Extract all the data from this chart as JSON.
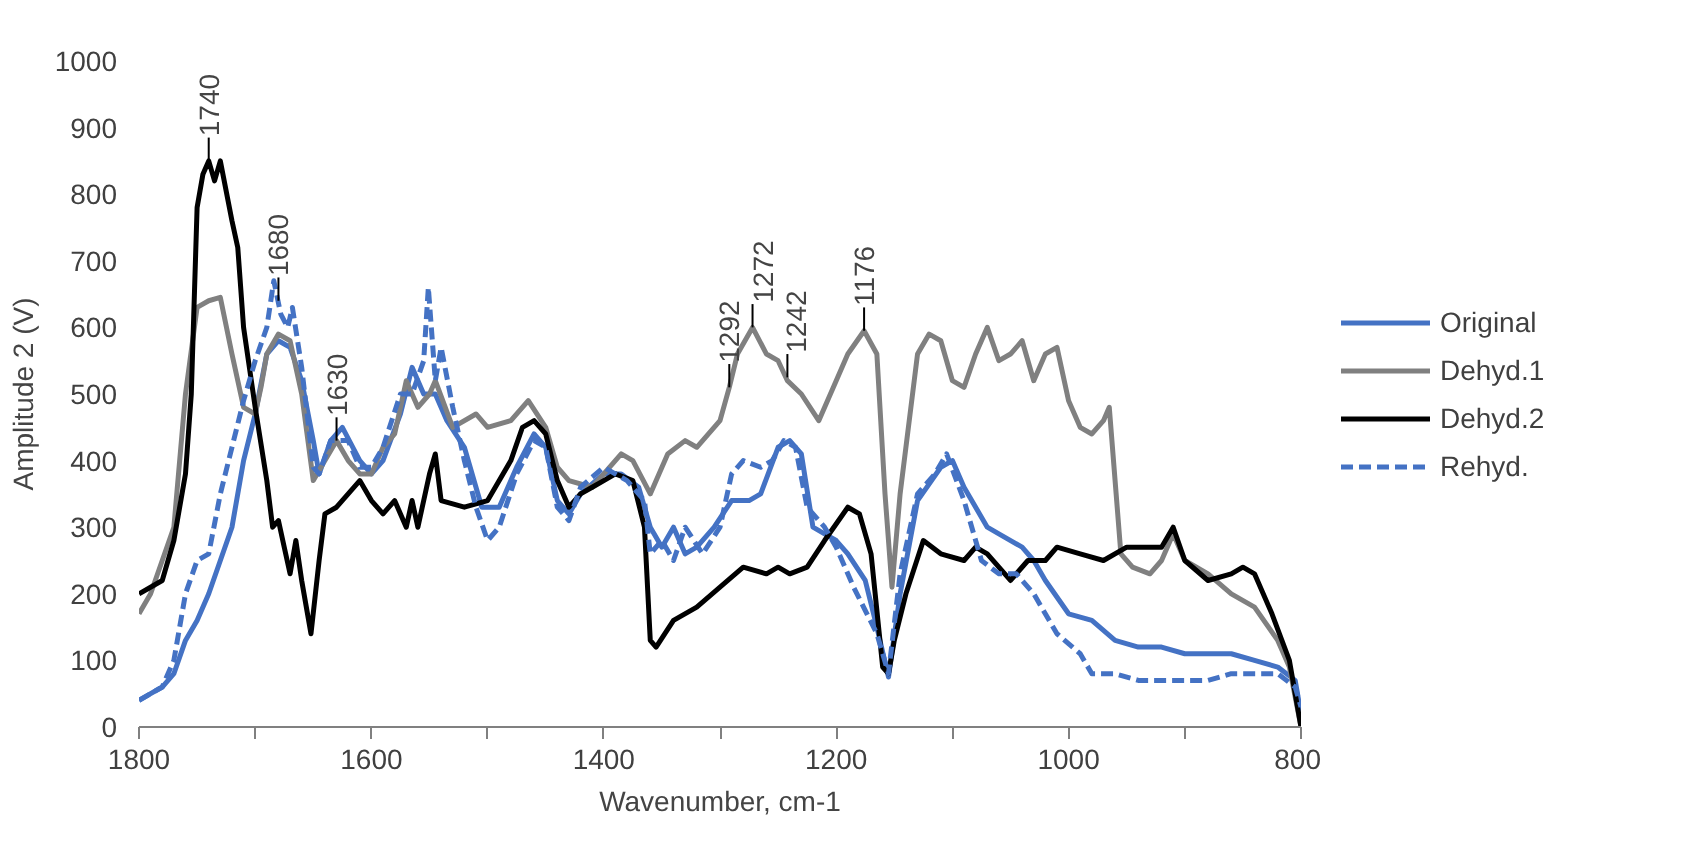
{
  "chart_data": {
    "type": "line",
    "xlabel": "Wavenumber, cm-1",
    "ylabel": "Amplitude 2 (V)",
    "xlim": [
      1800,
      800
    ],
    "ylim": [
      0,
      1000
    ],
    "xticks": [
      1800,
      {
        "value": 1700,
        "label": null
      },
      1600,
      {
        "value": 1500,
        "label": null
      },
      1400,
      {
        "value": 1300,
        "label": null
      },
      1200,
      {
        "value": 1100,
        "label": null
      },
      1000,
      {
        "value": 900,
        "label": null
      },
      800
    ],
    "yticks": [
      0,
      100,
      200,
      300,
      400,
      500,
      600,
      700,
      800,
      900,
      1000
    ],
    "grid": false,
    "legend": "right",
    "annotations": [
      {
        "text": "1740",
        "x": 1740,
        "y": 850
      },
      {
        "text": "1680",
        "x": 1680,
        "y": 640
      },
      {
        "text": "1630",
        "x": 1630,
        "y": 430
      },
      {
        "text": "1292",
        "x": 1292,
        "y": 510
      },
      {
        "text": "1272",
        "x": 1272,
        "y": 600
      },
      {
        "text": "1242",
        "x": 1242,
        "y": 525
      },
      {
        "text": "1176",
        "x": 1176,
        "y": 595
      }
    ],
    "series": [
      {
        "name": "Original",
        "color": "#4472c4",
        "line_style": "solid",
        "x": [
          1800,
          1790,
          1780,
          1770,
          1760,
          1750,
          1740,
          1730,
          1720,
          1710,
          1700,
          1690,
          1680,
          1670,
          1660,
          1650,
          1645,
          1635,
          1625,
          1610,
          1600,
          1590,
          1575,
          1565,
          1555,
          1545,
          1535,
          1520,
          1505,
          1490,
          1475,
          1460,
          1450,
          1440,
          1430,
          1420,
          1400,
          1385,
          1370,
          1360,
          1350,
          1340,
          1330,
          1320,
          1305,
          1290,
          1275,
          1265,
          1250,
          1240,
          1230,
          1220,
          1210,
          1200,
          1190,
          1175,
          1165,
          1155,
          1145,
          1130,
          1110,
          1100,
          1090,
          1070,
          1060,
          1040,
          1030,
          1020,
          1000,
          980,
          960,
          940,
          920,
          900,
          880,
          860,
          840,
          820,
          805,
          800
        ],
        "values": [
          40,
          50,
          60,
          80,
          130,
          160,
          200,
          250,
          300,
          400,
          470,
          560,
          580,
          570,
          520,
          430,
          380,
          430,
          450,
          400,
          380,
          400,
          470,
          540,
          500,
          500,
          460,
          420,
          330,
          330,
          390,
          440,
          420,
          340,
          320,
          350,
          380,
          380,
          360,
          300,
          270,
          300,
          260,
          270,
          300,
          340,
          340,
          350,
          420,
          430,
          410,
          300,
          290,
          280,
          260,
          220,
          150,
          75,
          200,
          340,
          390,
          400,
          360,
          300,
          290,
          270,
          250,
          220,
          170,
          160,
          130,
          120,
          120,
          110,
          110,
          110,
          100,
          90,
          70,
          20
        ]
      },
      {
        "name": "Dehyd.1",
        "color": "#808080",
        "line_style": "solid",
        "x": [
          1800,
          1790,
          1770,
          1760,
          1750,
          1740,
          1730,
          1720,
          1710,
          1700,
          1695,
          1690,
          1680,
          1670,
          1660,
          1650,
          1640,
          1630,
          1620,
          1610,
          1600,
          1590,
          1580,
          1570,
          1560,
          1550,
          1545,
          1530,
          1510,
          1500,
          1480,
          1465,
          1450,
          1440,
          1430,
          1410,
          1400,
          1385,
          1375,
          1360,
          1345,
          1330,
          1320,
          1300,
          1292,
          1285,
          1272,
          1260,
          1250,
          1242,
          1230,
          1215,
          1200,
          1190,
          1176,
          1165,
          1158,
          1152,
          1145,
          1130,
          1120,
          1110,
          1100,
          1090,
          1080,
          1070,
          1060,
          1050,
          1040,
          1030,
          1020,
          1010,
          1000,
          990,
          980,
          970,
          965,
          955,
          945,
          930,
          920,
          910,
          900,
          880,
          860,
          840,
          820,
          810,
          800
        ],
        "values": [
          170,
          200,
          300,
          500,
          630,
          640,
          645,
          560,
          480,
          470,
          510,
          560,
          590,
          580,
          500,
          370,
          400,
          430,
          400,
          380,
          380,
          420,
          440,
          520,
          480,
          500,
          520,
          450,
          470,
          450,
          460,
          490,
          450,
          390,
          370,
          360,
          380,
          410,
          400,
          350,
          410,
          430,
          420,
          460,
          510,
          560,
          600,
          560,
          550,
          520,
          500,
          460,
          520,
          560,
          595,
          560,
          350,
          210,
          350,
          560,
          590,
          580,
          520,
          510,
          560,
          600,
          550,
          560,
          580,
          520,
          560,
          570,
          490,
          450,
          440,
          460,
          480,
          260,
          240,
          230,
          250,
          290,
          250,
          230,
          200,
          180,
          130,
          90,
          0
        ]
      },
      {
        "name": "Dehyd.2",
        "color": "#000000",
        "line_style": "solid",
        "x": [
          1800,
          1780,
          1770,
          1760,
          1755,
          1750,
          1745,
          1740,
          1735,
          1730,
          1720,
          1715,
          1710,
          1700,
          1690,
          1685,
          1680,
          1675,
          1670,
          1665,
          1660,
          1652,
          1645,
          1640,
          1630,
          1620,
          1610,
          1600,
          1590,
          1580,
          1570,
          1565,
          1560,
          1550,
          1545,
          1540,
          1520,
          1500,
          1480,
          1470,
          1460,
          1450,
          1440,
          1430,
          1420,
          1410,
          1400,
          1390,
          1375,
          1365,
          1360,
          1355,
          1340,
          1320,
          1300,
          1280,
          1260,
          1250,
          1240,
          1225,
          1210,
          1190,
          1180,
          1170,
          1160,
          1155,
          1150,
          1140,
          1125,
          1110,
          1090,
          1080,
          1070,
          1050,
          1035,
          1020,
          1010,
          990,
          970,
          950,
          920,
          910,
          900,
          880,
          860,
          850,
          840,
          825,
          810,
          800
        ],
        "values": [
          200,
          220,
          280,
          380,
          500,
          780,
          830,
          850,
          820,
          850,
          760,
          720,
          600,
          480,
          370,
          300,
          310,
          270,
          230,
          280,
          220,
          140,
          250,
          320,
          330,
          350,
          370,
          340,
          320,
          340,
          300,
          340,
          300,
          380,
          410,
          340,
          330,
          340,
          400,
          450,
          460,
          440,
          370,
          330,
          350,
          360,
          370,
          380,
          370,
          300,
          130,
          120,
          160,
          180,
          210,
          240,
          230,
          240,
          230,
          240,
          280,
          330,
          320,
          260,
          90,
          80,
          130,
          200,
          280,
          260,
          250,
          270,
          260,
          220,
          250,
          250,
          270,
          260,
          250,
          270,
          270,
          300,
          250,
          220,
          230,
          240,
          230,
          170,
          100,
          0
        ]
      },
      {
        "name": "Rehyd.",
        "color": "#4472c4",
        "line_style": "dashed",
        "x": [
          1800,
          1780,
          1770,
          1760,
          1750,
          1740,
          1730,
          1720,
          1710,
          1705,
          1700,
          1690,
          1684,
          1678,
          1672,
          1668,
          1660,
          1650,
          1645,
          1635,
          1620,
          1610,
          1600,
          1590,
          1575,
          1565,
          1555,
          1551,
          1545,
          1540,
          1530,
          1520,
          1510,
          1500,
          1490,
          1475,
          1460,
          1450,
          1440,
          1430,
          1420,
          1400,
          1380,
          1365,
          1360,
          1350,
          1340,
          1330,
          1315,
          1300,
          1290,
          1280,
          1265,
          1255,
          1245,
          1235,
          1225,
          1210,
          1200,
          1185,
          1165,
          1155,
          1145,
          1130,
          1115,
          1105,
          1090,
          1075,
          1060,
          1045,
          1030,
          1010,
          990,
          980,
          960,
          940,
          920,
          900,
          880,
          860,
          840,
          820,
          805,
          800
        ],
        "values": [
          40,
          60,
          100,
          200,
          250,
          260,
          350,
          420,
          490,
          520,
          550,
          600,
          670,
          620,
          600,
          630,
          540,
          390,
          380,
          430,
          430,
          390,
          390,
          420,
          500,
          500,
          550,
          660,
          520,
          570,
          480,
          400,
          330,
          280,
          300,
          380,
          430,
          420,
          330,
          310,
          360,
          390,
          370,
          340,
          260,
          280,
          250,
          300,
          260,
          300,
          380,
          400,
          390,
          400,
          430,
          420,
          330,
          300,
          270,
          210,
          140,
          80,
          230,
          350,
          380,
          410,
          340,
          250,
          230,
          230,
          200,
          140,
          110,
          80,
          80,
          70,
          70,
          70,
          70,
          80,
          80,
          80,
          60,
          30
        ]
      }
    ]
  }
}
